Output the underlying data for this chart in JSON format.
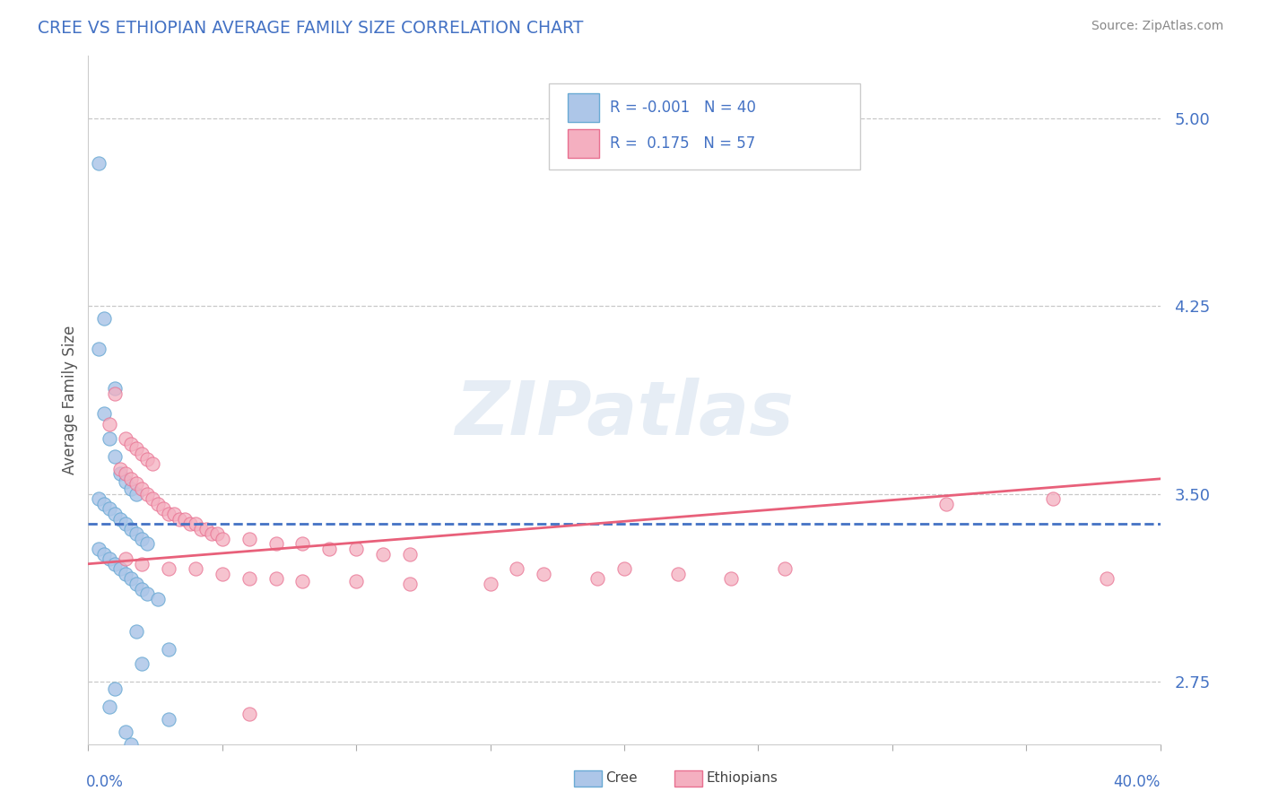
{
  "title": "CREE VS ETHIOPIAN AVERAGE FAMILY SIZE CORRELATION CHART",
  "source": "Source: ZipAtlas.com",
  "ylabel": "Average Family Size",
  "xlim": [
    0.0,
    0.4
  ],
  "ylim": [
    2.5,
    5.25
  ],
  "yticks": [
    2.75,
    3.5,
    4.25,
    5.0
  ],
  "background_color": "#ffffff",
  "grid_color": "#c8c8c8",
  "watermark": "ZIPatlas",
  "cree_color": "#adc6e8",
  "ethiopian_color": "#f4afc0",
  "cree_edge_color": "#6aaad4",
  "ethiopian_edge_color": "#e87090",
  "cree_line_color": "#4472c4",
  "ethiopian_line_color": "#e8607a",
  "cree_R": -0.001,
  "cree_N": 40,
  "ethiopian_R": 0.175,
  "ethiopian_N": 57,
  "cree_line_y0": 3.38,
  "cree_line_y1": 3.38,
  "ethiopian_line_y0": 3.22,
  "ethiopian_line_y1": 3.56,
  "cree_points": [
    [
      0.004,
      4.82
    ],
    [
      0.006,
      4.2
    ],
    [
      0.004,
      4.08
    ],
    [
      0.01,
      3.92
    ],
    [
      0.006,
      3.82
    ],
    [
      0.008,
      3.72
    ],
    [
      0.01,
      3.65
    ],
    [
      0.012,
      3.58
    ],
    [
      0.014,
      3.55
    ],
    [
      0.016,
      3.52
    ],
    [
      0.018,
      3.5
    ],
    [
      0.004,
      3.48
    ],
    [
      0.006,
      3.46
    ],
    [
      0.008,
      3.44
    ],
    [
      0.01,
      3.42
    ],
    [
      0.012,
      3.4
    ],
    [
      0.014,
      3.38
    ],
    [
      0.016,
      3.36
    ],
    [
      0.018,
      3.34
    ],
    [
      0.02,
      3.32
    ],
    [
      0.022,
      3.3
    ],
    [
      0.004,
      3.28
    ],
    [
      0.006,
      3.26
    ],
    [
      0.008,
      3.24
    ],
    [
      0.01,
      3.22
    ],
    [
      0.012,
      3.2
    ],
    [
      0.014,
      3.18
    ],
    [
      0.016,
      3.16
    ],
    [
      0.018,
      3.14
    ],
    [
      0.02,
      3.12
    ],
    [
      0.022,
      3.1
    ],
    [
      0.026,
      3.08
    ],
    [
      0.018,
      2.95
    ],
    [
      0.03,
      2.88
    ],
    [
      0.02,
      2.82
    ],
    [
      0.01,
      2.72
    ],
    [
      0.008,
      2.65
    ],
    [
      0.03,
      2.6
    ],
    [
      0.014,
      2.55
    ],
    [
      0.016,
      2.5
    ]
  ],
  "ethiopian_points": [
    [
      0.01,
      3.9
    ],
    [
      0.008,
      3.78
    ],
    [
      0.014,
      3.72
    ],
    [
      0.016,
      3.7
    ],
    [
      0.018,
      3.68
    ],
    [
      0.02,
      3.66
    ],
    [
      0.022,
      3.64
    ],
    [
      0.024,
      3.62
    ],
    [
      0.012,
      3.6
    ],
    [
      0.014,
      3.58
    ],
    [
      0.016,
      3.56
    ],
    [
      0.018,
      3.54
    ],
    [
      0.02,
      3.52
    ],
    [
      0.022,
      3.5
    ],
    [
      0.024,
      3.48
    ],
    [
      0.026,
      3.46
    ],
    [
      0.028,
      3.44
    ],
    [
      0.03,
      3.42
    ],
    [
      0.032,
      3.42
    ],
    [
      0.034,
      3.4
    ],
    [
      0.036,
      3.4
    ],
    [
      0.038,
      3.38
    ],
    [
      0.04,
      3.38
    ],
    [
      0.042,
      3.36
    ],
    [
      0.044,
      3.36
    ],
    [
      0.046,
      3.34
    ],
    [
      0.048,
      3.34
    ],
    [
      0.05,
      3.32
    ],
    [
      0.06,
      3.32
    ],
    [
      0.07,
      3.3
    ],
    [
      0.08,
      3.3
    ],
    [
      0.09,
      3.28
    ],
    [
      0.1,
      3.28
    ],
    [
      0.11,
      3.26
    ],
    [
      0.12,
      3.26
    ],
    [
      0.014,
      3.24
    ],
    [
      0.02,
      3.22
    ],
    [
      0.03,
      3.2
    ],
    [
      0.04,
      3.2
    ],
    [
      0.05,
      3.18
    ],
    [
      0.06,
      3.16
    ],
    [
      0.07,
      3.16
    ],
    [
      0.08,
      3.15
    ],
    [
      0.1,
      3.15
    ],
    [
      0.12,
      3.14
    ],
    [
      0.15,
      3.14
    ],
    [
      0.16,
      3.2
    ],
    [
      0.17,
      3.18
    ],
    [
      0.19,
      3.16
    ],
    [
      0.2,
      3.2
    ],
    [
      0.22,
      3.18
    ],
    [
      0.24,
      3.16
    ],
    [
      0.26,
      3.2
    ],
    [
      0.32,
      3.46
    ],
    [
      0.36,
      3.48
    ],
    [
      0.38,
      3.16
    ],
    [
      0.06,
      2.62
    ]
  ]
}
